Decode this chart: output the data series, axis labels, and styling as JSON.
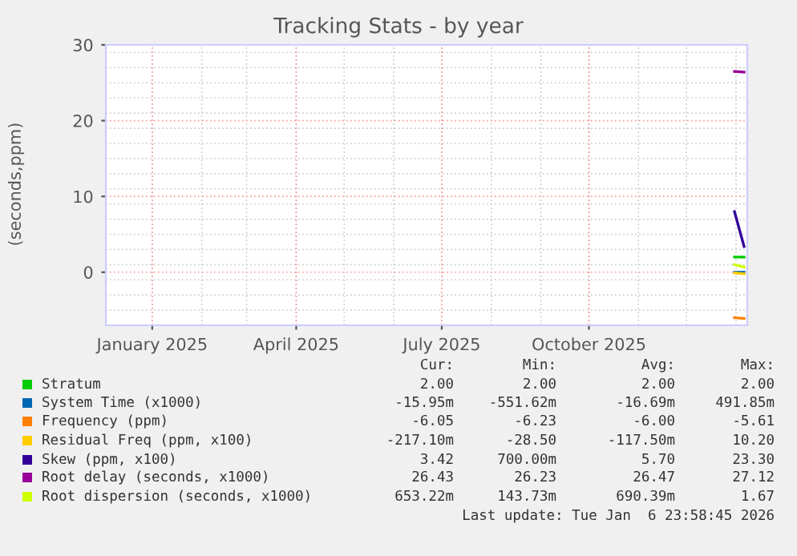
{
  "chart_data": {
    "type": "line",
    "title": "Tracking Stats - by year",
    "ylabel": "(seconds,ppm)",
    "xlim": [
      "2024-12-03",
      "2026-01-08"
    ],
    "ylim": [
      -7,
      30
    ],
    "yticks": [
      0,
      10,
      20,
      30
    ],
    "xticks": [
      {
        "value": "2025-01-01",
        "label": "January 2025"
      },
      {
        "value": "2025-04-01",
        "label": "April 2025"
      },
      {
        "value": "2025-07-01",
        "label": "July 2025"
      },
      {
        "value": "2025-10-01",
        "label": "October 2025"
      }
    ],
    "grid": true,
    "legend": "bottom",
    "series": [
      {
        "name": "Stratum",
        "color": "#00cc00",
        "x": [
          "2025-12-31",
          "2026-01-06"
        ],
        "values": [
          2.0,
          2.0
        ]
      },
      {
        "name": "System Time (x1000)",
        "color": "#0066b3",
        "x": [
          "2025-12-31",
          "2026-01-06"
        ],
        "values": [
          0.0,
          0.0
        ]
      },
      {
        "name": "Frequency (ppm)",
        "color": "#ff8000",
        "x": [
          "2025-12-31",
          "2026-01-06"
        ],
        "values": [
          -6.0,
          -6.1
        ]
      },
      {
        "name": "Residual Freq (ppm, x100)",
        "color": "#ffcc00",
        "x": [
          "2025-12-31",
          "2026-01-06"
        ],
        "values": [
          -0.1,
          -0.2
        ]
      },
      {
        "name": "Skew (ppm, x100)",
        "color": "#330099",
        "x": [
          "2025-12-31",
          "2026-01-06"
        ],
        "values": [
          8.0,
          3.4
        ]
      },
      {
        "name": "Root delay (seconds, x1000)",
        "color": "#990099",
        "x": [
          "2025-12-31",
          "2026-01-06"
        ],
        "values": [
          26.5,
          26.4
        ]
      },
      {
        "name": "Root dispersion (seconds, x1000)",
        "color": "#ccff00",
        "x": [
          "2025-12-31",
          "2026-01-06"
        ],
        "values": [
          1.0,
          0.7
        ]
      }
    ],
    "annotations": [
      "Cur:",
      "Min:",
      "Avg:",
      "Max:",
      "2.00",
      "2.00",
      "2.00",
      "2.00",
      "-15.95m",
      "-551.62m",
      "-16.69m",
      "491.85m",
      "-6.05",
      "-6.23",
      "-6.00",
      "-5.61",
      "-217.10m",
      "-28.50",
      "-117.50m",
      "10.20",
      "3.42",
      "700.00m",
      "5.70",
      "23.30",
      "26.43",
      "26.23",
      "26.47",
      "27.12",
      "653.22m",
      "143.73m",
      "690.39m",
      "1.67",
      "Last update: Tue Jan  6 23:58:45 2026"
    ]
  }
}
